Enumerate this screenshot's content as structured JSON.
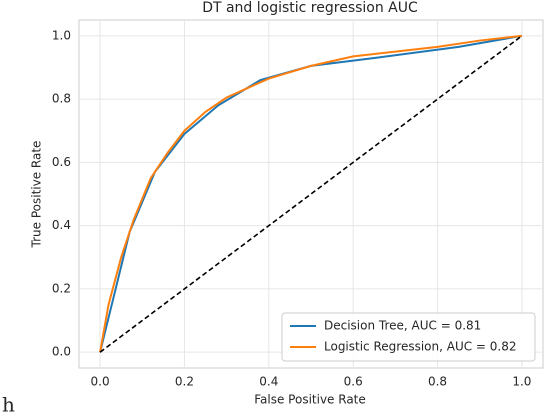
{
  "chart_data": {
    "type": "line",
    "title": "DT and logistic regression AUC",
    "x_label": "False Positive Rate",
    "y_label": "True Positive Rate",
    "xlim": [
      -0.05,
      1.05
    ],
    "ylim": [
      -0.05,
      1.05
    ],
    "xticks": [
      {
        "value": 0,
        "label": "0.0"
      },
      0.2,
      0.4,
      0.6,
      0.8,
      {
        "value": 1,
        "label": "1.0"
      }
    ],
    "yticks": [
      {
        "value": 0,
        "label": "0.0"
      },
      0.2,
      0.4,
      0.6,
      0.8,
      {
        "value": 1,
        "label": "1.0"
      }
    ],
    "grid": true,
    "legend": "lower right",
    "series": [
      {
        "name": "Decision Tree, AUC = 0.81",
        "color": "#1f77b4",
        "x": [
          0,
          0.07,
          0.13,
          0.2,
          0.28,
          0.38,
          0.5,
          0.65,
          0.85,
          1
        ],
        "values": [
          0,
          0.38,
          0.57,
          0.69,
          0.78,
          0.86,
          0.905,
          0.93,
          0.965,
          1
        ]
      },
      {
        "name": "Logistic Regression, AUC = 0.82",
        "color": "#ff7f0e",
        "x": [
          0,
          0.02,
          0.05,
          0.08,
          0.12,
          0.16,
          0.2,
          0.25,
          0.3,
          0.4,
          0.5,
          0.6,
          0.7,
          0.8,
          0.9,
          1
        ],
        "values": [
          0,
          0.15,
          0.3,
          0.42,
          0.55,
          0.63,
          0.7,
          0.76,
          0.805,
          0.865,
          0.905,
          0.935,
          0.95,
          0.965,
          0.985,
          1
        ]
      }
    ],
    "reference_line": {
      "x": [
        0,
        1
      ],
      "values": [
        0,
        1
      ],
      "color": "#000000"
    }
  },
  "stray_text": "h"
}
